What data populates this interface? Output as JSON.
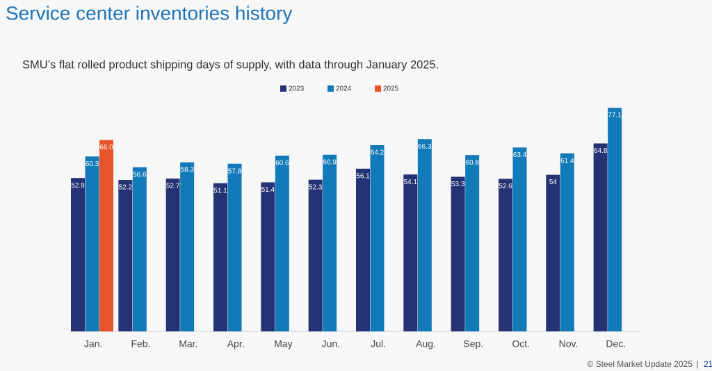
{
  "chart_data": {
    "type": "bar",
    "title": "Service center inventories history",
    "subtitle": "SMU’s flat rolled product shipping days of supply, with data through January 2025.",
    "categories": [
      "Jan.",
      "Feb.",
      "Mar.",
      "Apr.",
      "May",
      "Jun.",
      "Jul.",
      "Aug.",
      "Sep.",
      "Oct.",
      "Nov.",
      "Dec."
    ],
    "series": [
      {
        "name": "2023",
        "color": "#253374",
        "values": [
          52.9,
          52.2,
          52.7,
          51.1,
          51.4,
          52.3,
          56.1,
          54.1,
          53.3,
          52.6,
          54,
          64.8
        ]
      },
      {
        "name": "2024",
        "color": "#127ab8",
        "values": [
          60.3,
          56.6,
          58.3,
          57.8,
          60.6,
          60.9,
          64.2,
          66.3,
          60.8,
          63.4,
          61.4,
          77.1
        ]
      },
      {
        "name": "2025",
        "color": "#e8542a",
        "values": [
          66.0,
          null,
          null,
          null,
          null,
          null,
          null,
          null,
          null,
          null,
          null,
          null
        ],
        "value_labels": [
          "66.0",
          null,
          null,
          null,
          null,
          null,
          null,
          null,
          null,
          null,
          null,
          null
        ]
      }
    ],
    "ylim": [
      0,
      80
    ],
    "legend": "top",
    "footer": "© Steel Market Update 2025",
    "footer_separator": "|",
    "page_number": "21"
  }
}
